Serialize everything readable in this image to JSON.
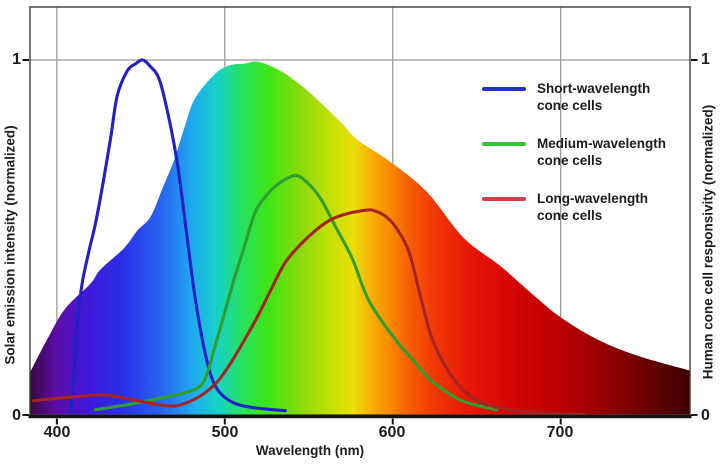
{
  "chart_data": {
    "type": "area+line",
    "xlabel": "Wavelength (nm)",
    "ylabel_left": "Solar emission intensity (normalized)",
    "ylabel_right": "Human cone cell responsivity (normalized)",
    "xlim": [
      384,
      777
    ],
    "ylim": [
      0,
      1
    ],
    "x_ticks": [
      400,
      500,
      600,
      700
    ],
    "y_ticks": [
      1,
      0
    ],
    "y_gridlines": [
      1
    ],
    "grid_color": "#9b9b9b",
    "border_color": "#3c3c3c",
    "axis_color": "#141414",
    "spectrum_gradient": [
      {
        "at": 0.0,
        "color": "#380741"
      },
      {
        "at": 0.04,
        "color": "#5c0da6"
      },
      {
        "at": 0.09,
        "color": "#3f18dc"
      },
      {
        "at": 0.14,
        "color": "#2b2fe8"
      },
      {
        "at": 0.2,
        "color": "#2766f2"
      },
      {
        "at": 0.245,
        "color": "#1fa8f0"
      },
      {
        "at": 0.285,
        "color": "#16d2c4"
      },
      {
        "at": 0.32,
        "color": "#25e263"
      },
      {
        "at": 0.36,
        "color": "#3ce516"
      },
      {
        "at": 0.41,
        "color": "#8ada0c"
      },
      {
        "at": 0.455,
        "color": "#c3df06"
      },
      {
        "at": 0.49,
        "color": "#ebdf07"
      },
      {
        "at": 0.515,
        "color": "#f7b105"
      },
      {
        "at": 0.545,
        "color": "#f98a03"
      },
      {
        "at": 0.575,
        "color": "#f75e04"
      },
      {
        "at": 0.61,
        "color": "#f23a06"
      },
      {
        "at": 0.66,
        "color": "#e81a06"
      },
      {
        "at": 0.72,
        "color": "#d80707"
      },
      {
        "at": 0.8,
        "color": "#bc0000"
      },
      {
        "at": 0.88,
        "color": "#8e0000"
      },
      {
        "at": 0.95,
        "color": "#5e0000"
      },
      {
        "at": 1.0,
        "color": "#3c0000"
      }
    ],
    "area": {
      "name": "Solar emission spectrum",
      "points": [
        [
          384,
          0.12
        ],
        [
          395,
          0.22
        ],
        [
          405,
          0.3
        ],
        [
          420,
          0.37
        ],
        [
          426,
          0.41
        ],
        [
          440,
          0.47
        ],
        [
          448,
          0.52
        ],
        [
          456,
          0.56
        ],
        [
          463,
          0.64
        ],
        [
          470,
          0.72
        ],
        [
          476,
          0.81
        ],
        [
          482,
          0.89
        ],
        [
          494,
          0.96
        ],
        [
          503,
          0.985
        ],
        [
          512,
          0.99
        ],
        [
          520,
          0.995
        ],
        [
          533,
          0.97
        ],
        [
          545,
          0.93
        ],
        [
          557,
          0.88
        ],
        [
          569,
          0.825
        ],
        [
          579,
          0.775
        ],
        [
          598,
          0.715
        ],
        [
          620,
          0.63
        ],
        [
          642,
          0.5
        ],
        [
          664,
          0.42
        ],
        [
          682,
          0.345
        ],
        [
          700,
          0.275
        ],
        [
          723,
          0.21
        ],
        [
          747,
          0.165
        ],
        [
          777,
          0.125
        ]
      ]
    },
    "series": [
      {
        "name": "Short-wavelength cone cells",
        "color": "#2121c4",
        "legend_color": "#2230cc",
        "points": [
          [
            408,
            0.0
          ],
          [
            410,
            0.1
          ],
          [
            412,
            0.25
          ],
          [
            415,
            0.37
          ],
          [
            419,
            0.46
          ],
          [
            423,
            0.54
          ],
          [
            427,
            0.64
          ],
          [
            432,
            0.78
          ],
          [
            436,
            0.9
          ],
          [
            442,
            0.97
          ],
          [
            447,
            0.99
          ],
          [
            451,
            1.0
          ],
          [
            455,
            0.985
          ],
          [
            461,
            0.945
          ],
          [
            467,
            0.83
          ],
          [
            472,
            0.7
          ],
          [
            477,
            0.52
          ],
          [
            482,
            0.34
          ],
          [
            488,
            0.18
          ],
          [
            494,
            0.085
          ],
          [
            503,
            0.04
          ],
          [
            515,
            0.022
          ],
          [
            536,
            0.012
          ]
        ]
      },
      {
        "name": "Medium-wavelength cone cells",
        "color": "#2f9e2f",
        "legend_color": "#33c433",
        "points": [
          [
            423,
            0.015
          ],
          [
            443,
            0.03
          ],
          [
            464,
            0.05
          ],
          [
            481,
            0.07
          ],
          [
            488,
            0.1
          ],
          [
            494,
            0.19
          ],
          [
            500,
            0.29
          ],
          [
            506,
            0.39
          ],
          [
            512,
            0.48
          ],
          [
            518,
            0.57
          ],
          [
            525,
            0.62
          ],
          [
            533,
            0.655
          ],
          [
            542,
            0.675
          ],
          [
            549,
            0.655
          ],
          [
            557,
            0.61
          ],
          [
            566,
            0.53
          ],
          [
            576,
            0.44
          ],
          [
            586,
            0.32
          ],
          [
            602,
            0.21
          ],
          [
            613,
            0.15
          ],
          [
            622,
            0.1
          ],
          [
            632,
            0.065
          ],
          [
            641,
            0.04
          ],
          [
            652,
            0.025
          ],
          [
            662,
            0.015
          ]
        ]
      },
      {
        "name": "Long-wavelength cone cells",
        "color": "#a62323",
        "legend_color": "#c94545",
        "points": [
          [
            386,
            0.04
          ],
          [
            402,
            0.048
          ],
          [
            417,
            0.054
          ],
          [
            429,
            0.056
          ],
          [
            443,
            0.045
          ],
          [
            458,
            0.031
          ],
          [
            470,
            0.025
          ],
          [
            480,
            0.04
          ],
          [
            488,
            0.062
          ],
          [
            496,
            0.096
          ],
          [
            504,
            0.15
          ],
          [
            512,
            0.214
          ],
          [
            520,
            0.282
          ],
          [
            528,
            0.358
          ],
          [
            536,
            0.43
          ],
          [
            545,
            0.48
          ],
          [
            554,
            0.52
          ],
          [
            563,
            0.55
          ],
          [
            572,
            0.566
          ],
          [
            580,
            0.574
          ],
          [
            588,
            0.577
          ],
          [
            597,
            0.555
          ],
          [
            604,
            0.513
          ],
          [
            610,
            0.455
          ],
          [
            616,
            0.344
          ],
          [
            623,
            0.22
          ],
          [
            631,
            0.14
          ],
          [
            639,
            0.085
          ],
          [
            646,
            0.054
          ],
          [
            655,
            0.031
          ],
          [
            667,
            0.017
          ],
          [
            682,
            0.008
          ],
          [
            700,
            0.003
          ],
          [
            714,
            0.001
          ]
        ]
      }
    ]
  }
}
